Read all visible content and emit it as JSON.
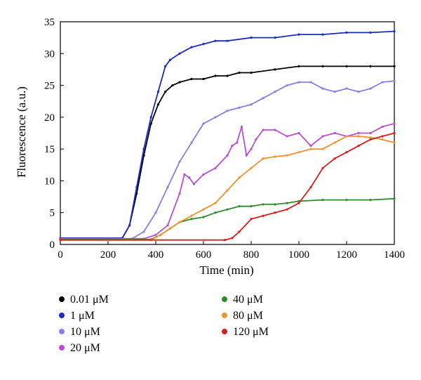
{
  "chart_data": {
    "type": "line",
    "title": "",
    "xlabel": "Time (min)",
    "ylabel": "Fluorescence (a.u.)",
    "xlim": [
      0,
      1400
    ],
    "ylim": [
      0,
      35
    ],
    "xticks": [
      0,
      200,
      400,
      600,
      800,
      1000,
      1200,
      1400
    ],
    "yticks": [
      0,
      5,
      10,
      15,
      20,
      25,
      30,
      35
    ],
    "xtick_labels": [
      "0",
      "200",
      "400",
      "600",
      "800",
      "1000",
      "1200",
      "1400"
    ],
    "ytick_labels": [
      "0",
      "5",
      "10",
      "15",
      "20",
      "25",
      "30",
      "35"
    ],
    "grid": false,
    "legend_position": "bottom",
    "series": [
      {
        "name": "0.01 μM",
        "color": "#000000",
        "x": [
          0,
          260,
          290,
          320,
          350,
          380,
          410,
          440,
          470,
          500,
          550,
          600,
          650,
          700,
          750,
          800,
          900,
          1000,
          1100,
          1200,
          1300,
          1400
        ],
        "y": [
          1,
          1,
          3,
          8,
          14,
          19,
          22,
          24,
          25,
          25.5,
          26,
          26,
          26.5,
          26.5,
          27,
          27,
          27.5,
          28,
          28,
          28,
          28,
          28
        ]
      },
      {
        "name": "1 μM",
        "color": "#1a2bbf",
        "x": [
          0,
          260,
          290,
          320,
          350,
          380,
          410,
          440,
          460,
          500,
          550,
          600,
          650,
          700,
          800,
          900,
          1000,
          1100,
          1200,
          1300,
          1400
        ],
        "y": [
          1,
          1,
          3,
          9,
          15,
          20,
          24,
          28,
          29,
          30,
          31,
          31.5,
          32,
          32,
          32.5,
          32.5,
          33,
          33,
          33.3,
          33.3,
          33.5
        ]
      },
      {
        "name": "10 μM",
        "color": "#8a7ee0",
        "x": [
          0,
          300,
          350,
          400,
          450,
          500,
          550,
          600,
          650,
          700,
          750,
          800,
          850,
          900,
          950,
          1000,
          1050,
          1100,
          1150,
          1200,
          1250,
          1300,
          1350,
          1400
        ],
        "y": [
          0.9,
          0.9,
          2,
          5,
          9,
          13,
          16,
          19,
          20,
          21,
          21.5,
          22,
          23,
          24,
          25,
          25.5,
          25.5,
          24.5,
          24,
          24.5,
          24,
          24.5,
          25.5,
          25.7
        ]
      },
      {
        "name": "20 μM",
        "color": "#b84fd0",
        "x": [
          0,
          350,
          400,
          450,
          500,
          520,
          540,
          560,
          600,
          650,
          700,
          720,
          740,
          760,
          780,
          800,
          820,
          850,
          900,
          950,
          1000,
          1050,
          1100,
          1150,
          1200,
          1250,
          1300,
          1350,
          1400
        ],
        "y": [
          0.9,
          0.9,
          1.5,
          3,
          8,
          11,
          10.5,
          9.5,
          11,
          12,
          14,
          15.5,
          16,
          18.5,
          14,
          15,
          16.5,
          18,
          18,
          17,
          17.5,
          15.5,
          17,
          17.5,
          17,
          17.5,
          17.5,
          18.5,
          19
        ]
      },
      {
        "name": "40 μM",
        "color": "#2e8b2e",
        "x": [
          0,
          380,
          420,
          460,
          500,
          550,
          600,
          650,
          700,
          750,
          800,
          850,
          900,
          950,
          1000,
          1100,
          1200,
          1300,
          1400
        ],
        "y": [
          0.8,
          0.8,
          1.5,
          2.5,
          3.5,
          4,
          4.3,
          5,
          5.5,
          6,
          6,
          6.3,
          6.3,
          6.5,
          6.8,
          7,
          7,
          7,
          7.2
        ]
      },
      {
        "name": "80 μM",
        "color": "#f0922e",
        "x": [
          0,
          380,
          420,
          460,
          500,
          550,
          600,
          650,
          700,
          750,
          800,
          850,
          900,
          950,
          1000,
          1050,
          1100,
          1150,
          1200,
          1250,
          1300,
          1350,
          1400
        ],
        "y": [
          0.7,
          0.7,
          1.5,
          2.5,
          3.5,
          4.5,
          5.5,
          6.5,
          8.5,
          10.5,
          12,
          13.5,
          13.8,
          14,
          14.5,
          15,
          15,
          16,
          17,
          17,
          16.8,
          16.5,
          16
        ]
      },
      {
        "name": "120 μM",
        "color": "#d42020",
        "x": [
          0,
          690,
          720,
          750,
          800,
          850,
          900,
          950,
          1000,
          1050,
          1100,
          1150,
          1200,
          1250,
          1300,
          1350,
          1400
        ],
        "y": [
          0.7,
          0.7,
          1,
          2,
          4,
          4.5,
          5,
          5.5,
          6.5,
          9,
          12,
          13.5,
          14.5,
          15.5,
          16.5,
          17,
          17.5
        ]
      }
    ]
  }
}
